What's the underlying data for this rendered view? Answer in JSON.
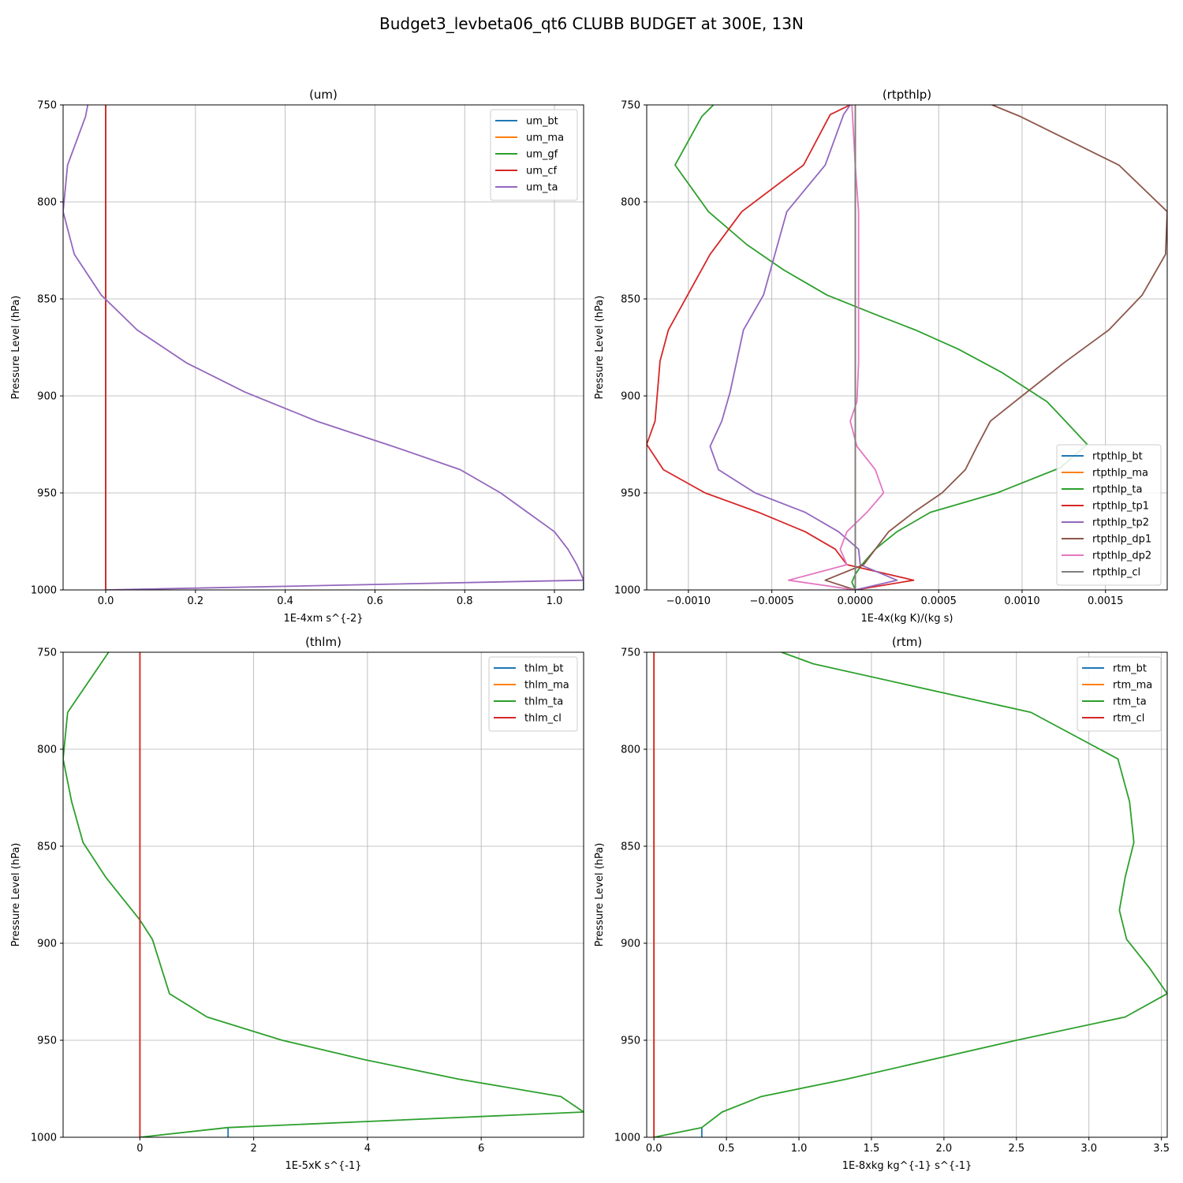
{
  "figure": {
    "title": "Budget3_levbeta06_qt6 CLUBB BUDGET at 300E, 13N"
  },
  "colors": {
    "blue": "#1f77b4",
    "orange": "#ff7f0e",
    "green": "#2ca02c",
    "red": "#d62728",
    "purple": "#9467bd",
    "brown": "#8c564b",
    "pink": "#e377c2",
    "gray": "#7f7f7f"
  },
  "chart_data": [
    {
      "type": "line",
      "title": "(um)",
      "xlabel": "1E-4xm s^{-2}",
      "ylabel": "Pressure Level (hPa)",
      "xlim": [
        -0.095,
        1.065
      ],
      "ylim": [
        1000,
        750
      ],
      "y_inverted": true,
      "grid": true,
      "legend": "top-right",
      "xticks": [
        0.0,
        0.2,
        0.4,
        0.6,
        0.8,
        1.0
      ],
      "xtick_labels": [
        "0.0",
        "0.2",
        "0.4",
        "0.6",
        "0.8",
        "1.0"
      ],
      "yticks": [
        750,
        800,
        850,
        900,
        950,
        1000
      ],
      "ytick_labels": [
        "750",
        "800",
        "850",
        "900",
        "950",
        "1000"
      ],
      "series": [
        {
          "name": "um_bt",
          "color": "#1f77b4",
          "x": [
            1.065,
            1.065
          ],
          "y": [
            995,
            1000
          ]
        },
        {
          "name": "um_ma",
          "color": "#ff7f0e",
          "x": [
            0,
            0
          ],
          "y": [
            750,
            1000
          ]
        },
        {
          "name": "um_gf",
          "color": "#2ca02c",
          "x": [
            0,
            0
          ],
          "y": [
            750,
            1000
          ]
        },
        {
          "name": "um_cf",
          "color": "#d62728",
          "x": [
            0,
            0
          ],
          "y": [
            750,
            1000
          ]
        },
        {
          "name": "um_ta",
          "color": "#9467bd",
          "x": [
            -0.04,
            -0.045,
            -0.085,
            -0.095,
            -0.07,
            -0.01,
            0.07,
            0.18,
            0.31,
            0.47,
            0.64,
            0.79,
            0.88,
            0.94,
            1.0,
            1.03,
            1.05,
            1.065,
            0.0
          ],
          "y": [
            750,
            756,
            781,
            805,
            827,
            848,
            866,
            883,
            898,
            913,
            926,
            938,
            950,
            960,
            970,
            979,
            987,
            995,
            1000
          ]
        }
      ]
    },
    {
      "type": "line",
      "title": "(rtpthlp)",
      "xlabel": "1E-4x(kg K)/(kg s)",
      "ylabel": "Pressure Level (hPa)",
      "xlim": [
        -0.00125,
        0.00187
      ],
      "ylim": [
        1000,
        750
      ],
      "y_inverted": true,
      "grid": true,
      "legend": "lower-right",
      "xticks": [
        -0.001,
        -0.0005,
        0.0,
        0.0005,
        0.001,
        0.0015
      ],
      "xtick_labels": [
        "−0.0010",
        "−0.0005",
        "0.0000",
        "0.0005",
        "0.0010",
        "0.0015"
      ],
      "yticks": [
        750,
        800,
        850,
        900,
        950,
        1000
      ],
      "ytick_labels": [
        "750",
        "800",
        "850",
        "900",
        "950",
        "1000"
      ],
      "series": [
        {
          "name": "rtpthlp_bt",
          "color": "#1f77b4",
          "x": [
            0,
            0
          ],
          "y": [
            750,
            1000
          ]
        },
        {
          "name": "rtpthlp_ma",
          "color": "#ff7f0e",
          "x": [
            0,
            0
          ],
          "y": [
            750,
            1000
          ]
        },
        {
          "name": "rtpthlp_ta",
          "color": "#2ca02c",
          "x": [
            -0.00085,
            -0.00092,
            -0.00108,
            -0.00088,
            -0.00065,
            -0.00043,
            -0.00017,
            0.00012,
            0.00036,
            0.00062,
            0.00088,
            0.00115,
            0.00126,
            0.00139,
            0.00123,
            0.00085,
            0.00045,
            0.00025,
            0.00012,
            4e-05,
            0.0,
            -2e-05,
            0.0
          ],
          "y": [
            750,
            756,
            781,
            805,
            822,
            835,
            848,
            858,
            866,
            876,
            888,
            903,
            913,
            925,
            937,
            950,
            960,
            970,
            979,
            987,
            992,
            996,
            1000
          ]
        },
        {
          "name": "rtpthlp_tp1",
          "color": "#d62728",
          "x": [
            -3e-05,
            -0.00015,
            -0.00031,
            -0.00068,
            -0.00087,
            -0.00112,
            -0.00117,
            -0.0012,
            -0.00125,
            -0.00115,
            -0.0009,
            -0.00058,
            -0.0003,
            -0.00012,
            -5e-05,
            0.00035,
            0.0
          ],
          "y": [
            750,
            755,
            781,
            805,
            827,
            866,
            882,
            913,
            925,
            938,
            950,
            960,
            970,
            979,
            987,
            995,
            1000
          ]
        },
        {
          "name": "rtpthlp_tp2",
          "color": "#9467bd",
          "x": [
            -3e-05,
            -7e-05,
            -0.00018,
            -0.00041,
            -0.00055,
            -0.00067,
            -0.00075,
            -0.0008,
            -0.00087,
            -0.00082,
            -0.0006,
            -0.0003,
            -0.0001,
            2e-05,
            3e-05,
            0.00025,
            0.0
          ],
          "y": [
            750,
            755,
            781,
            805,
            848,
            866,
            898,
            913,
            926,
            938,
            950,
            960,
            970,
            979,
            987,
            995,
            1000
          ]
        },
        {
          "name": "rtpthlp_dp1",
          "color": "#8c564b",
          "x": [
            0.00082,
            0.00099,
            0.00158,
            0.00187,
            0.00186,
            0.00172,
            0.00152,
            0.00125,
            0.001,
            0.00081,
            0.00073,
            0.00066,
            0.00052,
            0.00035,
            0.0002,
            5e-05,
            -0.00018,
            0.0
          ],
          "y": [
            750,
            756,
            781,
            805,
            827,
            848,
            866,
            883,
            900,
            913,
            926,
            938,
            950,
            960,
            970,
            987,
            995,
            1000
          ]
        },
        {
          "name": "rtpthlp_dp2",
          "color": "#e377c2",
          "x": [
            -2e-05,
            0.0,
            2e-05,
            2e-05,
            2e-05,
            1e-05,
            -3e-05,
            1e-05,
            0.00012,
            0.00017,
            7e-05,
            -5e-05,
            -9e-05,
            -5e-05,
            -0.0004,
            0.0
          ],
          "y": [
            750,
            781,
            805,
            848,
            883,
            903,
            913,
            926,
            938,
            950,
            960,
            970,
            979,
            987,
            995,
            1000
          ]
        },
        {
          "name": "rtpthlp_cl",
          "color": "#7f7f7f",
          "x": [
            0,
            0
          ],
          "y": [
            750,
            1000
          ]
        }
      ]
    },
    {
      "type": "line",
      "title": "(thlm)",
      "xlabel": "1E-5xK s^{-1}",
      "ylabel": "Pressure Level (hPa)",
      "xlim": [
        -1.35,
        7.8
      ],
      "ylim": [
        1000,
        750
      ],
      "y_inverted": true,
      "grid": true,
      "legend": "top-right",
      "xticks": [
        0,
        2,
        4,
        6
      ],
      "xtick_labels": [
        "0",
        "2",
        "4",
        "6"
      ],
      "yticks": [
        750,
        800,
        850,
        900,
        950,
        1000
      ],
      "ytick_labels": [
        "750",
        "800",
        "850",
        "900",
        "950",
        "1000"
      ],
      "series": [
        {
          "name": "thlm_bt",
          "color": "#1f77b4",
          "x": [
            1.55,
            1.55
          ],
          "y": [
            995,
            1000
          ]
        },
        {
          "name": "thlm_ma",
          "color": "#ff7f0e",
          "x": [
            0,
            0
          ],
          "y": [
            750,
            1000
          ]
        },
        {
          "name": "thlm_ta",
          "color": "#2ca02c",
          "x": [
            -0.55,
            -1.27,
            -1.35,
            -1.2,
            -1.0,
            -0.6,
            0.0,
            0.22,
            0.52,
            1.18,
            2.5,
            3.95,
            5.6,
            7.4,
            7.8,
            1.55,
            0.0
          ],
          "y": [
            750,
            781,
            805,
            827,
            848,
            866,
            888,
            898,
            926,
            938,
            950,
            960,
            970,
            979,
            987,
            995,
            1000
          ]
        },
        {
          "name": "thlm_cl",
          "color": "#d62728",
          "x": [
            0,
            0
          ],
          "y": [
            750,
            1000
          ]
        }
      ]
    },
    {
      "type": "line",
      "title": "(rtm)",
      "xlabel": "1E-8xkg kg^{-1} s^{-1}",
      "ylabel": "Pressure Level (hPa)",
      "xlim": [
        -0.05,
        3.54
      ],
      "ylim": [
        1000,
        750
      ],
      "y_inverted": true,
      "grid": true,
      "legend": "top-right",
      "xticks": [
        0.0,
        0.5,
        1.0,
        1.5,
        2.0,
        2.5,
        3.0,
        3.5
      ],
      "xtick_labels": [
        "0.0",
        "0.5",
        "1.0",
        "1.5",
        "2.0",
        "2.5",
        "3.0",
        "3.5"
      ],
      "yticks": [
        750,
        800,
        850,
        900,
        950,
        1000
      ],
      "ytick_labels": [
        "750",
        "800",
        "850",
        "900",
        "950",
        "1000"
      ],
      "series": [
        {
          "name": "rtm_bt",
          "color": "#1f77b4",
          "x": [
            0.33,
            0.33
          ],
          "y": [
            995,
            1000
          ]
        },
        {
          "name": "rtm_ma",
          "color": "#ff7f0e",
          "x": [
            0,
            0
          ],
          "y": [
            750,
            1000
          ]
        },
        {
          "name": "rtm_ta",
          "color": "#2ca02c",
          "x": [
            0.88,
            1.1,
            2.6,
            3.2,
            3.28,
            3.31,
            3.25,
            3.21,
            3.26,
            3.42,
            3.54,
            3.25,
            2.5,
            1.33,
            0.74,
            0.47,
            0.33,
            0.0
          ],
          "y": [
            750,
            756,
            781,
            805,
            827,
            848,
            866,
            883,
            898,
            913,
            926,
            938,
            950,
            970,
            979,
            987,
            995,
            1000
          ]
        },
        {
          "name": "rtm_cl",
          "color": "#d62728",
          "x": [
            0,
            0
          ],
          "y": [
            750,
            1000
          ]
        }
      ]
    }
  ]
}
